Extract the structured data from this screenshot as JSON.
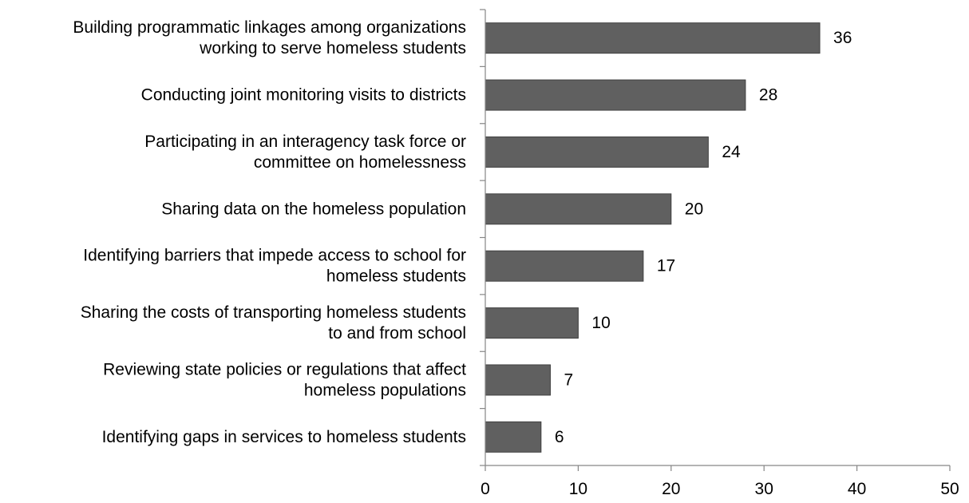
{
  "chart_data": {
    "type": "bar",
    "orientation": "horizontal",
    "categories": [
      [
        "Building programmatic linkages among  organizations",
        "working to serve homeless students"
      ],
      [
        "Conducting joint monitoring visits to districts"
      ],
      [
        "Participating in an interagency task force or",
        "committee on homelessness"
      ],
      [
        "Sharing data on the homeless population"
      ],
      [
        "Identifying barriers that impede access to school for",
        "homeless students"
      ],
      [
        "Sharing the costs of transporting homeless students",
        "to and from school"
      ],
      [
        "Reviewing state policies or regulations that affect",
        "homeless populations"
      ],
      [
        "Identifying gaps in services to homeless students"
      ]
    ],
    "values": [
      36,
      28,
      24,
      20,
      17,
      10,
      7,
      6
    ],
    "data_labels": [
      "36",
      "28",
      "24",
      "20",
      "17",
      "10",
      "7",
      "6"
    ],
    "xlim": [
      0,
      50
    ],
    "xticks": [
      0,
      10,
      20,
      30,
      40,
      50
    ],
    "xtick_labels": [
      "0",
      "10",
      "20",
      "30",
      "40",
      "50"
    ],
    "title": "",
    "xlabel": "",
    "ylabel": "",
    "grid": false,
    "legend": "none",
    "bar_color": "#606060",
    "bar_edge_color": "#404040",
    "axis_color": "#868686"
  }
}
